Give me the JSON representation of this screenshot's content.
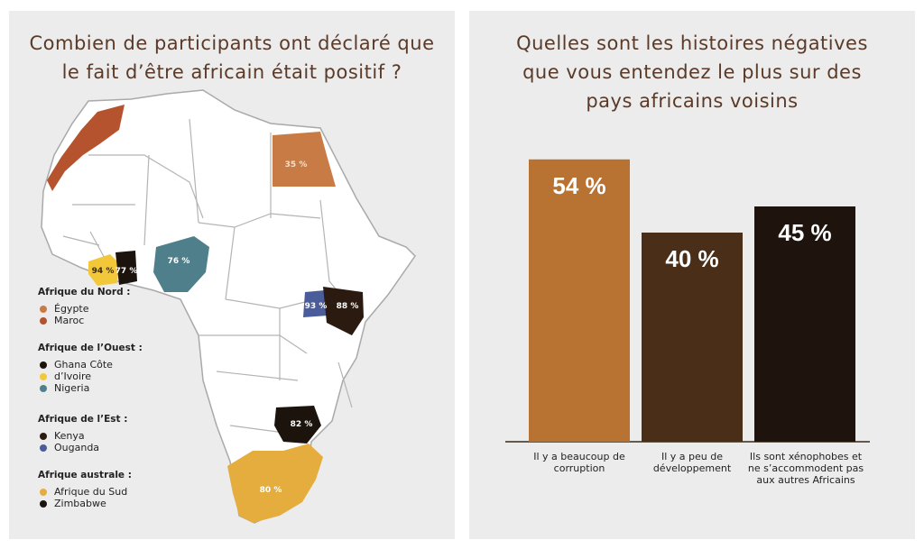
{
  "map": {
    "title": "Combien de participants ont déclaré que le fait d’être africain était positif ?",
    "countries": [
      {
        "name": "Égypte",
        "value": "35 %",
        "color": "#c97b45"
      },
      {
        "name": "Maroc",
        "value": "",
        "color": "#b5532f"
      },
      {
        "name": "Ghana Côte d’Ivoire",
        "value": "77 %",
        "color": "#1c130d"
      },
      {
        "name": "Côte d’Ivoire",
        "value": "94 %",
        "color": "#f2c73a"
      },
      {
        "name": "Nigeria",
        "value": "76 %",
        "color": "#4f7f8a"
      },
      {
        "name": "Kenya",
        "value": "88 %",
        "color": "#2b1a10"
      },
      {
        "name": "Ouganda",
        "value": "93 %",
        "color": "#4a5d9a"
      },
      {
        "name": "Zimbabwe",
        "value": "82 %",
        "color": "#1c130d"
      },
      {
        "name": "Afrique du Sud",
        "value": "80 %",
        "color": "#e4ad3e"
      }
    ],
    "legend": [
      {
        "heading": "Afrique du Nord :",
        "items": [
          {
            "label": "Égypte",
            "color": "#c97b45"
          },
          {
            "label": "Maroc",
            "color": "#b5532f"
          }
        ]
      },
      {
        "heading": "Afrique de l’Ouest :",
        "items": [
          {
            "label": "Ghana Côte",
            "color": "#1c130d"
          },
          {
            "label": "d’Ivoire",
            "color": "#f2c73a"
          },
          {
            "label": "Nigeria",
            "color": "#4f7f8a"
          }
        ]
      },
      {
        "heading": "Afrique de l’Est :",
        "items": [
          {
            "label": "Kenya",
            "color": "#2b1a10"
          },
          {
            "label": "Ouganda",
            "color": "#4a5d9a"
          }
        ]
      },
      {
        "heading": "Afrique australe :",
        "items": [
          {
            "label": "Afrique du Sud",
            "color": "#e4ad3e"
          },
          {
            "label": "Zimbabwe",
            "color": "#1c130d"
          }
        ]
      }
    ]
  },
  "chart_data": {
    "type": "bar",
    "title": "Quelles sont les histoires négatives que vous entendez le plus sur des pays africains voisins",
    "categories": [
      "Il y a beaucoup de corruption",
      "Il y a peu de développement",
      "Ils sont xénophobes et ne s’accommodent pas aux autres Africains"
    ],
    "values": [
      54,
      40,
      45
    ],
    "labels": [
      "54 %",
      "40 %",
      "45 %"
    ],
    "colors": [
      "#b87333",
      "#4a2e17",
      "#1e140d"
    ],
    "ylim": [
      0,
      60
    ],
    "grid": false,
    "xlabel": "",
    "ylabel": ""
  }
}
